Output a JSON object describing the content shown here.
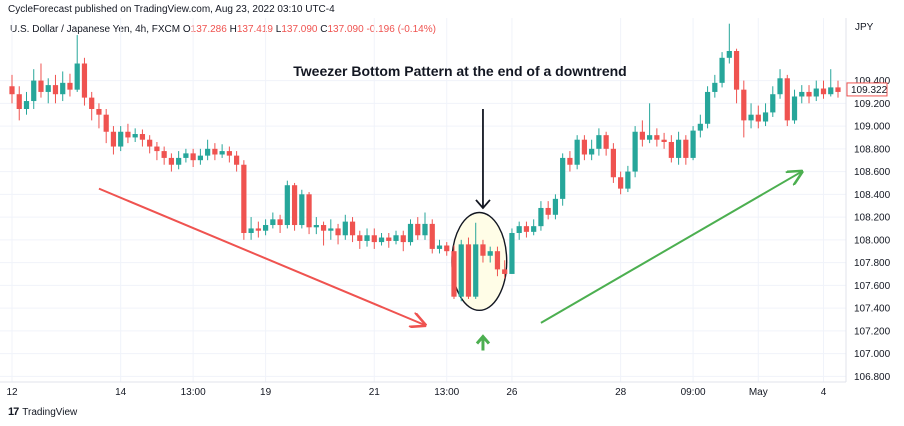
{
  "header": {
    "publish_line": "CycleForecast published on TradingView.com, Aug 23, 2022 03:10 UTC-4",
    "symbol": "U.S. Dollar / Japanese Yen, 4h, FXCM",
    "o_label": "O",
    "o_value": "137.286",
    "h_label": "H",
    "h_value": "137.419",
    "l_label": "L",
    "l_value": "137.090",
    "c_label": "C",
    "c_value": "137.090",
    "change": "-0.196 (-0.14%)"
  },
  "footer": {
    "logo_text": "17",
    "brand": "TradingView"
  },
  "chart_data": {
    "type": "candlestick",
    "title": "Tweezer Bottom Pattern at the end of a downtrend",
    "currency": "JPY",
    "last_price_label": "109.322",
    "ylim": [
      106.75,
      109.95
    ],
    "y_ticks": [
      "109.400",
      "109.200",
      "109.000",
      "108.800",
      "108.600",
      "108.400",
      "108.200",
      "108.000",
      "107.800",
      "107.600",
      "107.400",
      "107.200",
      "107.000",
      "106.800"
    ],
    "x_ticks": [
      {
        "label": "12",
        "index": 0
      },
      {
        "label": "14",
        "index": 15
      },
      {
        "label": "13:00",
        "index": 25
      },
      {
        "label": "19",
        "index": 35
      },
      {
        "label": "21",
        "index": 50
      },
      {
        "label": "13:00",
        "index": 60
      },
      {
        "label": "26",
        "index": 69
      },
      {
        "label": "28",
        "index": 84
      },
      {
        "label": "09:00",
        "index": 94
      },
      {
        "label": "May",
        "index": 103
      },
      {
        "label": "4",
        "index": 112
      }
    ],
    "colors": {
      "up": "#26a69a",
      "down": "#ef5350",
      "grid": "#f0f3fa",
      "highlight_fill": "#fffde7",
      "down_arrow": "#131722",
      "trend_down": "#ef5350",
      "trend_up": "#4caf50"
    },
    "annotations": {
      "downtrend_arrow": {
        "from_index": 12,
        "from_y": 108.45,
        "to_index": 57,
        "to_y": 107.25
      },
      "uptrend_arrow": {
        "from_index": 73,
        "from_y": 107.27,
        "to_index": 109,
        "to_y": 108.6
      },
      "highlight_ellipse": {
        "from_index": 61,
        "to_index": 68,
        "y_low": 107.38,
        "y_high": 108.24
      },
      "pointer_down": {
        "index": 65,
        "from_y": 109.15,
        "to_y": 108.28
      },
      "pointer_up": {
        "index": 65,
        "y": 107.15
      }
    },
    "candles": [
      [
        109.35,
        109.28,
        109.45,
        109.2
      ],
      [
        109.28,
        109.15,
        109.35,
        109.05
      ],
      [
        109.15,
        109.22,
        109.3,
        109.1
      ],
      [
        109.22,
        109.4,
        109.5,
        109.15
      ],
      [
        109.4,
        109.3,
        109.55,
        109.25
      ],
      [
        109.3,
        109.36,
        109.42,
        109.2
      ],
      [
        109.36,
        109.28,
        109.45,
        109.2
      ],
      [
        109.28,
        109.38,
        109.48,
        109.22
      ],
      [
        109.38,
        109.32,
        109.46,
        109.26
      ],
      [
        109.32,
        109.55,
        109.8,
        109.3
      ],
      [
        109.55,
        109.25,
        109.6,
        109.18
      ],
      [
        109.25,
        109.15,
        109.3,
        109.05
      ],
      [
        109.15,
        109.1,
        109.2,
        108.98
      ],
      [
        109.1,
        108.95,
        109.15,
        108.85
      ],
      [
        108.95,
        108.82,
        109.0,
        108.75
      ],
      [
        108.82,
        108.95,
        109.0,
        108.78
      ],
      [
        108.95,
        108.9,
        109.02,
        108.85
      ],
      [
        108.9,
        108.93,
        108.98,
        108.86
      ],
      [
        108.93,
        108.88,
        108.97,
        108.82
      ],
      [
        108.88,
        108.82,
        108.92,
        108.76
      ],
      [
        108.82,
        108.78,
        108.86,
        108.7
      ],
      [
        108.78,
        108.72,
        108.82,
        108.66
      ],
      [
        108.72,
        108.66,
        108.76,
        108.6
      ],
      [
        108.66,
        108.72,
        108.78,
        108.62
      ],
      [
        108.72,
        108.76,
        108.8,
        108.68
      ],
      [
        108.76,
        108.7,
        108.8,
        108.64
      ],
      [
        108.7,
        108.74,
        108.8,
        108.66
      ],
      [
        108.74,
        108.8,
        108.88,
        108.7
      ],
      [
        108.8,
        108.75,
        108.85,
        108.7
      ],
      [
        108.75,
        108.78,
        108.84,
        108.72
      ],
      [
        108.78,
        108.74,
        108.82,
        108.68
      ],
      [
        108.74,
        108.66,
        108.78,
        108.6
      ],
      [
        108.66,
        108.06,
        108.7,
        108.0
      ],
      [
        108.06,
        108.1,
        108.2,
        108.0
      ],
      [
        108.1,
        108.08,
        108.16,
        108.02
      ],
      [
        108.08,
        108.13,
        108.18,
        108.04
      ],
      [
        108.13,
        108.18,
        108.24,
        108.1
      ],
      [
        108.18,
        108.13,
        108.22,
        108.06
      ],
      [
        108.13,
        108.48,
        108.52,
        108.1
      ],
      [
        108.48,
        108.13,
        108.5,
        108.08
      ],
      [
        108.13,
        108.4,
        108.44,
        108.1
      ],
      [
        108.4,
        108.11,
        108.42,
        108.05
      ],
      [
        108.11,
        108.13,
        108.2,
        108.05
      ],
      [
        108.13,
        108.08,
        108.16,
        107.95
      ],
      [
        108.08,
        108.1,
        108.18,
        108.0
      ],
      [
        108.1,
        108.04,
        108.14,
        107.96
      ],
      [
        108.04,
        108.16,
        108.22,
        108.0
      ],
      [
        108.16,
        108.04,
        108.2,
        107.98
      ],
      [
        108.04,
        107.99,
        108.08,
        107.92
      ],
      [
        107.99,
        108.04,
        108.1,
        107.94
      ],
      [
        108.04,
        107.98,
        108.1,
        107.92
      ],
      [
        107.98,
        108.02,
        108.06,
        107.95
      ],
      [
        108.02,
        107.99,
        108.06,
        107.93
      ],
      [
        107.99,
        108.04,
        108.08,
        107.96
      ],
      [
        108.04,
        107.98,
        108.08,
        107.9
      ],
      [
        107.98,
        108.14,
        108.18,
        107.95
      ],
      [
        108.14,
        108.04,
        108.2,
        108.0
      ],
      [
        108.04,
        108.14,
        108.24,
        108.0
      ],
      [
        108.14,
        107.92,
        108.18,
        107.88
      ],
      [
        107.92,
        107.95,
        108.0,
        107.88
      ],
      [
        107.95,
        107.9,
        107.98,
        107.86
      ],
      [
        107.9,
        107.5,
        107.95,
        107.48
      ],
      [
        107.5,
        107.96,
        108.0,
        107.46
      ],
      [
        107.96,
        107.5,
        108.02,
        107.48
      ],
      [
        107.5,
        107.96,
        108.15,
        107.48
      ],
      [
        107.96,
        107.86,
        108.0,
        107.8
      ],
      [
        107.86,
        107.9,
        107.94,
        107.8
      ],
      [
        107.9,
        107.74,
        107.94,
        107.68
      ],
      [
        107.74,
        107.7,
        107.82,
        107.66
      ],
      [
        107.7,
        108.06,
        108.1,
        107.7
      ],
      [
        108.06,
        108.12,
        108.16,
        108.0
      ],
      [
        108.12,
        108.07,
        108.16,
        108.02
      ],
      [
        108.07,
        108.12,
        108.18,
        108.04
      ],
      [
        108.12,
        108.28,
        108.34,
        108.08
      ],
      [
        108.28,
        108.22,
        108.34,
        108.18
      ],
      [
        108.22,
        108.36,
        108.4,
        108.18
      ],
      [
        108.36,
        108.72,
        108.76,
        108.3
      ],
      [
        108.72,
        108.66,
        108.78,
        108.6
      ],
      [
        108.66,
        108.88,
        108.92,
        108.62
      ],
      [
        108.88,
        108.75,
        108.92,
        108.7
      ],
      [
        108.75,
        108.8,
        108.88,
        108.7
      ],
      [
        108.8,
        108.92,
        108.98,
        108.74
      ],
      [
        108.92,
        108.8,
        108.95,
        108.74
      ],
      [
        108.8,
        108.55,
        108.85,
        108.5
      ],
      [
        108.55,
        108.45,
        108.6,
        108.4
      ],
      [
        108.45,
        108.6,
        108.65,
        108.42
      ],
      [
        108.6,
        108.95,
        109.0,
        108.55
      ],
      [
        108.95,
        108.88,
        109.05,
        108.82
      ],
      [
        108.88,
        108.92,
        109.2,
        108.85
      ],
      [
        108.92,
        108.88,
        108.98,
        108.82
      ],
      [
        108.88,
        108.86,
        108.94,
        108.8
      ],
      [
        108.86,
        108.72,
        108.92,
        108.68
      ],
      [
        108.72,
        108.88,
        108.95,
        108.66
      ],
      [
        108.88,
        108.72,
        108.92,
        108.66
      ],
      [
        108.72,
        108.96,
        109.0,
        108.7
      ],
      [
        108.96,
        109.02,
        109.1,
        108.9
      ],
      [
        109.02,
        109.3,
        109.35,
        108.98
      ],
      [
        109.3,
        109.38,
        109.45,
        109.25
      ],
      [
        109.38,
        109.6,
        109.65,
        109.34
      ],
      [
        109.6,
        109.66,
        109.9,
        109.55
      ],
      [
        109.66,
        109.32,
        109.68,
        109.2
      ],
      [
        109.32,
        109.05,
        109.4,
        108.9
      ],
      [
        109.05,
        109.1,
        109.2,
        108.98
      ],
      [
        109.1,
        109.04,
        109.18,
        108.98
      ],
      [
        109.04,
        109.12,
        109.2,
        109.0
      ],
      [
        109.12,
        109.28,
        109.35,
        109.08
      ],
      [
        109.28,
        109.42,
        109.5,
        109.24
      ],
      [
        109.42,
        109.05,
        109.45,
        109.0
      ],
      [
        109.05,
        109.26,
        109.32,
        109.02
      ],
      [
        109.26,
        109.3,
        109.36,
        109.2
      ],
      [
        109.3,
        109.26,
        109.36,
        109.2
      ],
      [
        109.26,
        109.33,
        109.4,
        109.22
      ],
      [
        109.33,
        109.28,
        109.4,
        109.24
      ],
      [
        109.28,
        109.34,
        109.5,
        109.26
      ],
      [
        109.34,
        109.3,
        109.4,
        109.25
      ]
    ]
  }
}
